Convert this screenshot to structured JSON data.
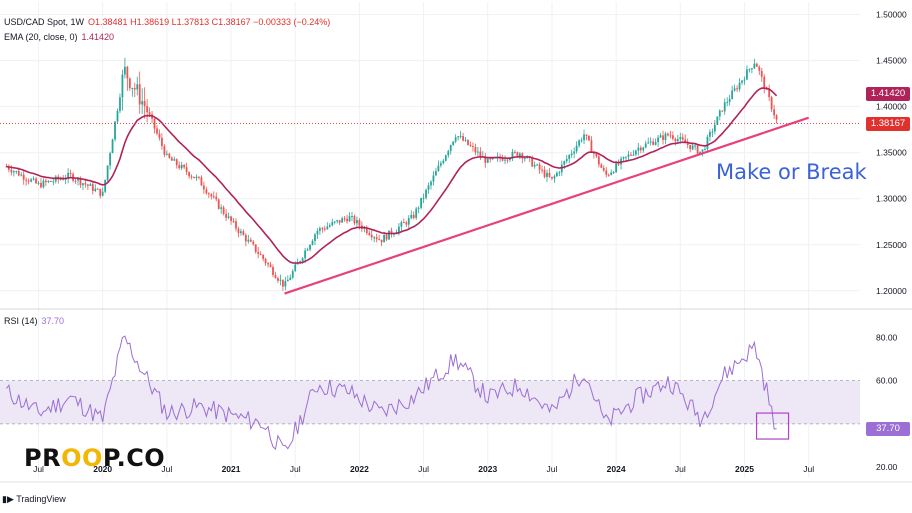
{
  "legend": {
    "symbol": "USD/CAD Spot, 1W",
    "ohlc": "O1.38481 H1.38619 L1.37813 C1.38167 −0.00333 (−0.24%)",
    "ema_label": "EMA (20, close, 0)",
    "ema_value": "1.41420",
    "rsi_label": "RSI (14)",
    "rsi_value": "37.70"
  },
  "annotation": "Make or Break",
  "price_labels": {
    "ema": "1.41420",
    "close": "1.38167",
    "rsi": "37.70"
  },
  "brand": {
    "left": "PR",
    "middle": "OO",
    "right": "P.CO"
  },
  "watermark": "TradingView",
  "colors": {
    "up": "#26a69a",
    "down": "#ef5350",
    "ema": "#b0235a",
    "trendline": "#e8417a",
    "rsi": "#9b6fd3",
    "rsi_band": "#ede7f6",
    "annotation": "#3b62d6",
    "close_label": "#e0312f",
    "rsi_box": "#b042c8"
  },
  "chart_data": [
    {
      "type": "candlestick",
      "title": "USD/CAD Spot, 1W",
      "x_tick_labels": [
        "Jul",
        "2020",
        "Jul",
        "2021",
        "Jul",
        "2022",
        "Jul",
        "2023",
        "Jul",
        "2024",
        "Jul",
        "2025",
        "Jul"
      ],
      "y_tick_labels": [
        "1.50000",
        "1.45000",
        "1.40000",
        "1.35000",
        "1.30000",
        "1.25000",
        "1.20000"
      ],
      "ylim": [
        1.19,
        1.505
      ],
      "close_path": [
        [
          "2019-04",
          1.335
        ],
        [
          "2019-07",
          1.315
        ],
        [
          "2019-10",
          1.325
        ],
        [
          "2020-01",
          1.305
        ],
        [
          "2020-03",
          1.44
        ],
        [
          "2020-05",
          1.4
        ],
        [
          "2020-07",
          1.345
        ],
        [
          "2020-10",
          1.32
        ],
        [
          "2021-01",
          1.275
        ],
        [
          "2021-04",
          1.235
        ],
        [
          "2021-06",
          1.205
        ],
        [
          "2021-09",
          1.265
        ],
        [
          "2021-12",
          1.28
        ],
        [
          "2022-03",
          1.255
        ],
        [
          "2022-06",
          1.28
        ],
        [
          "2022-10",
          1.37
        ],
        [
          "2023-01",
          1.34
        ],
        [
          "2023-04",
          1.35
        ],
        [
          "2023-07",
          1.32
        ],
        [
          "2023-10",
          1.37
        ],
        [
          "2023-12",
          1.325
        ],
        [
          "2024-03",
          1.355
        ],
        [
          "2024-06",
          1.37
        ],
        [
          "2024-09",
          1.35
        ],
        [
          "2024-11",
          1.4
        ],
        [
          "2025-02",
          1.45
        ],
        [
          "2025-04",
          1.385
        ]
      ],
      "ema_20": {
        "name": "EMA (20, close, 0)",
        "last": 1.4142
      },
      "last_close": 1.38167,
      "trendline": {
        "start": [
          "2021-06",
          1.197
        ],
        "end": [
          "2025-07",
          1.388
        ]
      }
    },
    {
      "type": "line",
      "title": "RSI (14)",
      "y_tick_labels": [
        "80.00",
        "60.00",
        "40.00",
        "20.00"
      ],
      "ylim": [
        15,
        88
      ],
      "band": [
        40,
        60
      ],
      "path": [
        [
          "2019-04",
          55
        ],
        [
          "2019-07",
          45
        ],
        [
          "2019-10",
          52
        ],
        [
          "2020-01",
          42
        ],
        [
          "2020-03",
          80
        ],
        [
          "2020-05",
          62
        ],
        [
          "2020-07",
          45
        ],
        [
          "2020-10",
          48
        ],
        [
          "2021-01",
          44
        ],
        [
          "2021-04",
          40
        ],
        [
          "2021-06",
          26
        ],
        [
          "2021-09",
          58
        ],
        [
          "2021-12",
          55
        ],
        [
          "2022-03",
          45
        ],
        [
          "2022-06",
          52
        ],
        [
          "2022-10",
          70
        ],
        [
          "2023-01",
          52
        ],
        [
          "2023-04",
          58
        ],
        [
          "2023-07",
          45
        ],
        [
          "2023-10",
          65
        ],
        [
          "2023-12",
          40
        ],
        [
          "2024-03",
          52
        ],
        [
          "2024-06",
          60
        ],
        [
          "2024-09",
          42
        ],
        [
          "2024-11",
          62
        ],
        [
          "2025-02",
          76
        ],
        [
          "2025-04",
          37.7
        ]
      ],
      "last": 37.7
    }
  ]
}
